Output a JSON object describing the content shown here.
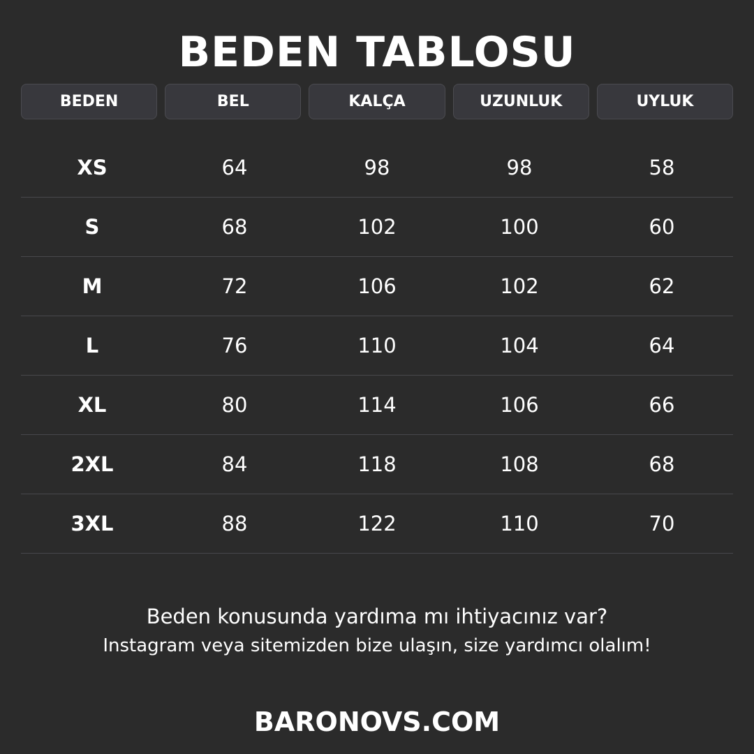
{
  "title": "BEDEN TABLOSU",
  "columns": [
    "BEDEN",
    "BEL",
    "KALÇA",
    "UZUNLUK",
    "UYLUK"
  ],
  "rows": [
    [
      "XS",
      "64",
      "98",
      "98",
      "58"
    ],
    [
      "S",
      "68",
      "102",
      "100",
      "60"
    ],
    [
      "M",
      "72",
      "106",
      "102",
      "62"
    ],
    [
      "L",
      "76",
      "110",
      "104",
      "64"
    ],
    [
      "XL",
      "80",
      "114",
      "106",
      "66"
    ],
    [
      "2XL",
      "84",
      "118",
      "108",
      "68"
    ],
    [
      "3XL",
      "88",
      "122",
      "110",
      "70"
    ]
  ],
  "help_line1": "Beden konusunda yardıma mı ihtiyacınız var?",
  "help_line2": "Instagram veya sitemizden bize ulaşın, size yardımcı olalım!",
  "website": "BARONOVS.COM",
  "colors": {
    "background": "#2b2b2b",
    "header_cell": "#38383d",
    "divider": "#48484c"
  }
}
